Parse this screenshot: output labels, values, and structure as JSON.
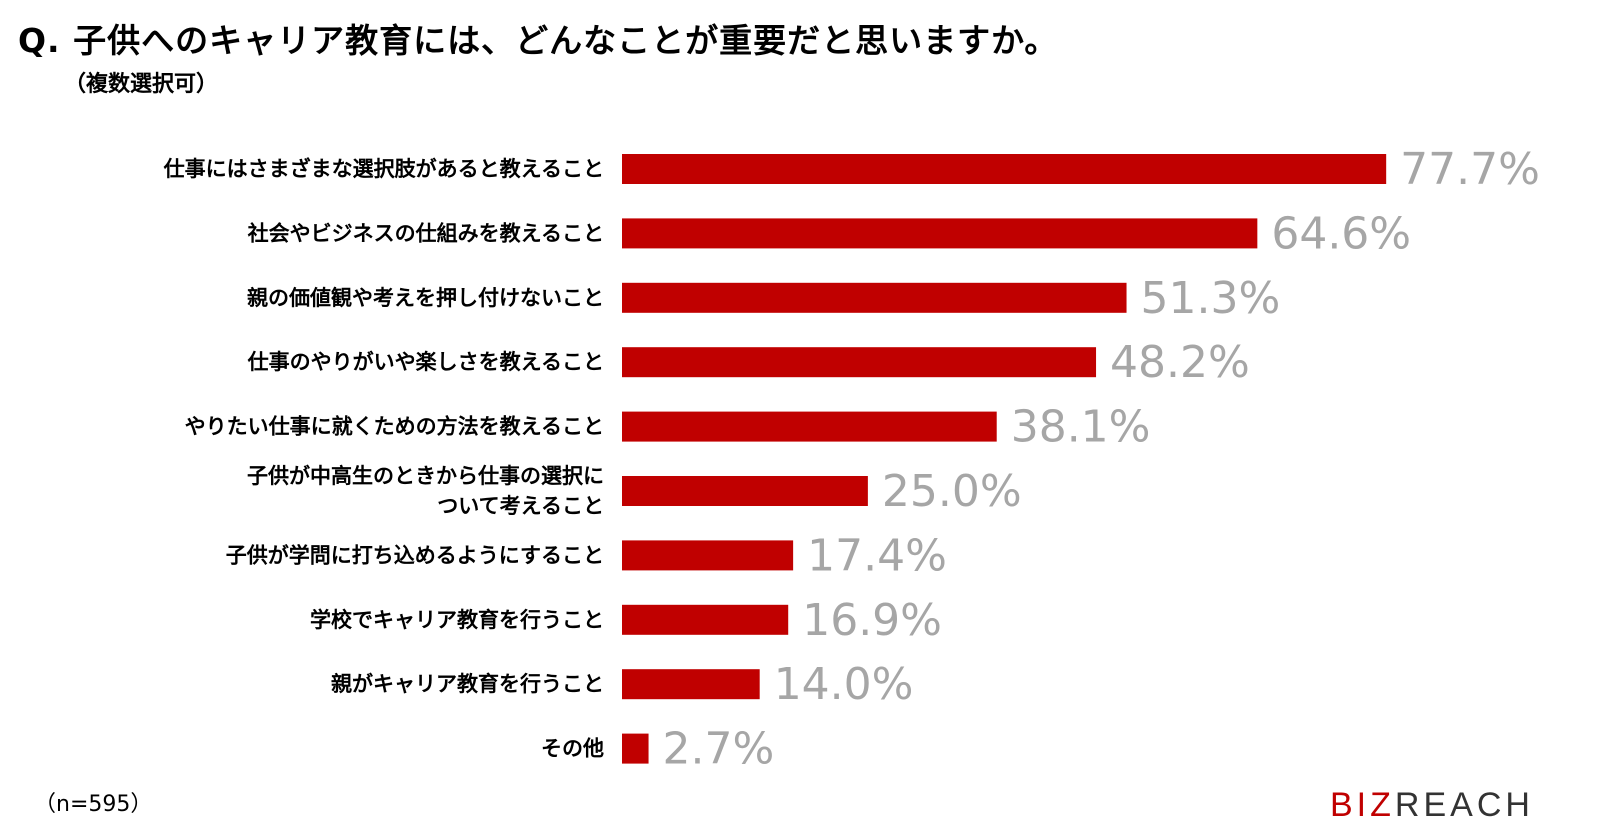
{
  "header": {
    "title": "Q. 子供へのキャリア教育には、どんなことが重要だと思いますか。",
    "subtitle": "（複数選択可）"
  },
  "footer": {
    "sample_note": "（n=595）"
  },
  "logo": {
    "text_red": "BIZ",
    "text_dark": "REACH",
    "red": "#C00000",
    "dark": "#333333"
  },
  "colors": {
    "bar": "#C00000",
    "value_label": "#A6A6A6",
    "category_label": "#000000"
  },
  "chart_data": {
    "type": "bar",
    "orientation": "horizontal",
    "title": "Q. 子供へのキャリア教育には、どんなことが重要だと思いますか。",
    "subtitle": "（複数選択可）",
    "categories": [
      [
        "仕事にはさまざまな選択肢があると教えること"
      ],
      [
        "社会やビジネスの仕組みを教えること"
      ],
      [
        "親の価値観や考えを押し付けないこと"
      ],
      [
        "仕事のやりがいや楽しさを教えること"
      ],
      [
        "やりたい仕事に就くための方法を教えること"
      ],
      [
        "子供が中高生のときから仕事の選択に",
        "ついて考えること"
      ],
      [
        "子供が学問に打ち込めるようにすること"
      ],
      [
        "学校でキャリア教育を行うこと"
      ],
      [
        "親がキャリア教育を行うこと"
      ],
      [
        "その他"
      ]
    ],
    "values": [
      77.7,
      64.6,
      51.3,
      48.2,
      38.1,
      25.0,
      17.4,
      16.9,
      14.0,
      2.7
    ],
    "value_labels": [
      "77.7%",
      "64.6%",
      "51.3%",
      "48.2%",
      "38.1%",
      "25.0%",
      "17.4%",
      "16.9%",
      "14.0%",
      "2.7%"
    ],
    "unit": "%",
    "xlim": [
      0,
      100
    ],
    "grid": false,
    "legend": "none"
  }
}
